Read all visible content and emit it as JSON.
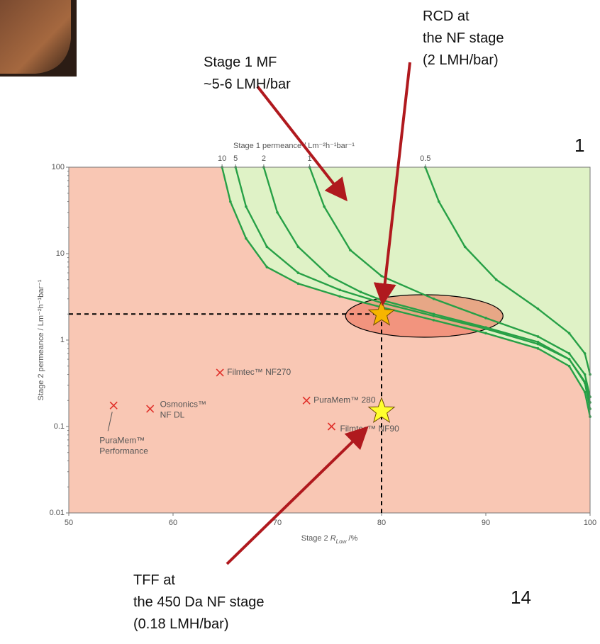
{
  "chart_data": {
    "type": "line",
    "ylog": true,
    "x_label": [
      "Stage 2 ",
      "R",
      "Low",
      " /%"
    ],
    "y_label": "Stage 2 permeance / Lm⁻²h⁻¹bar⁻¹",
    "x2_label": "Stage 1 permeance / Lm⁻²h⁻¹bar⁻¹",
    "xlim": [
      50,
      100
    ],
    "ylim": [
      0.01,
      100
    ],
    "xticks": [
      50,
      60,
      70,
      80,
      90,
      100
    ],
    "yticks": [
      0.01,
      0.1,
      1,
      10,
      100
    ],
    "x2ticks": [
      {
        "value": 64.7,
        "label": "10"
      },
      {
        "value": 66.0,
        "label": "5"
      },
      {
        "value": 68.7,
        "label": "2"
      },
      {
        "value": 73.1,
        "label": "1"
      },
      {
        "value": 84.2,
        "label": "0.5"
      }
    ],
    "background_color": "#f9c7b4",
    "region_color": "#dff2c6",
    "series": [
      {
        "color": "#27a046",
        "x": [
          64.7,
          65.5,
          67,
          69,
          72,
          76,
          80,
          85,
          90,
          95,
          98,
          99.5,
          100
        ],
        "values": [
          100,
          40,
          15,
          7,
          4.5,
          3.2,
          2.4,
          1.7,
          1.2,
          0.8,
          0.5,
          0.25,
          0.13
        ]
      },
      {
        "color": "#27a046",
        "x": [
          66.0,
          67,
          69,
          72,
          76,
          80,
          85,
          90,
          95,
          98,
          99.5,
          100
        ],
        "values": [
          100,
          35,
          12,
          6,
          3.8,
          2.7,
          1.9,
          1.35,
          0.9,
          0.6,
          0.32,
          0.16
        ]
      },
      {
        "color": "#27a046",
        "x": [
          68.7,
          70,
          72,
          75,
          78,
          80,
          85,
          90,
          95,
          98,
          99.5,
          100
        ],
        "values": [
          100,
          30,
          12,
          5.5,
          3.6,
          2.9,
          2.0,
          1.4,
          0.95,
          0.6,
          0.33,
          0.19
        ]
      },
      {
        "color": "#27a046",
        "x": [
          73.1,
          74.5,
          77,
          80,
          85,
          90,
          95,
          98,
          99.5,
          100
        ],
        "values": [
          100,
          35,
          11,
          5.5,
          3.0,
          1.8,
          1.1,
          0.7,
          0.4,
          0.22
        ]
      },
      {
        "color": "#27a046",
        "x": [
          84.2,
          85.5,
          88,
          91,
          95,
          98,
          99.5,
          100
        ],
        "values": [
          100,
          40,
          12,
          5,
          2.3,
          1.2,
          0.7,
          0.4
        ]
      }
    ],
    "points": {
      "color": "#e0302a",
      "x": [
        64.5,
        57.8,
        54.3,
        72.8,
        75.2
      ],
      "values": [
        0.42,
        0.16,
        0.175,
        0.2,
        0.1
      ],
      "labels": [
        [
          "Filmtec™ NF270"
        ],
        [
          "Osmonics™",
          "NF DL"
        ],
        [
          "PuraMem™",
          "Performance"
        ],
        [
          "PuraMem™ 280"
        ],
        [
          "Filmtec™ NF90"
        ]
      ]
    },
    "stars": [
      {
        "x": 80,
        "value": 2,
        "color": "#f7b500"
      },
      {
        "x": 80,
        "value": 0.15,
        "color": "#ffff2e"
      }
    ],
    "ellipse": {
      "x": 84.1,
      "value": 1.9,
      "color": "#ec6a52"
    },
    "annotations": [
      [
        "Stage 1 MF",
        "~5-6 LMH/bar"
      ],
      [
        "RCD at",
        "the NF stage",
        "(2 LMH/bar)"
      ],
      [
        "TFF at",
        "the 450 Da NF stage",
        "(0.18 LMH/bar)"
      ]
    ],
    "corner_number": "1",
    "page_number": "14"
  }
}
